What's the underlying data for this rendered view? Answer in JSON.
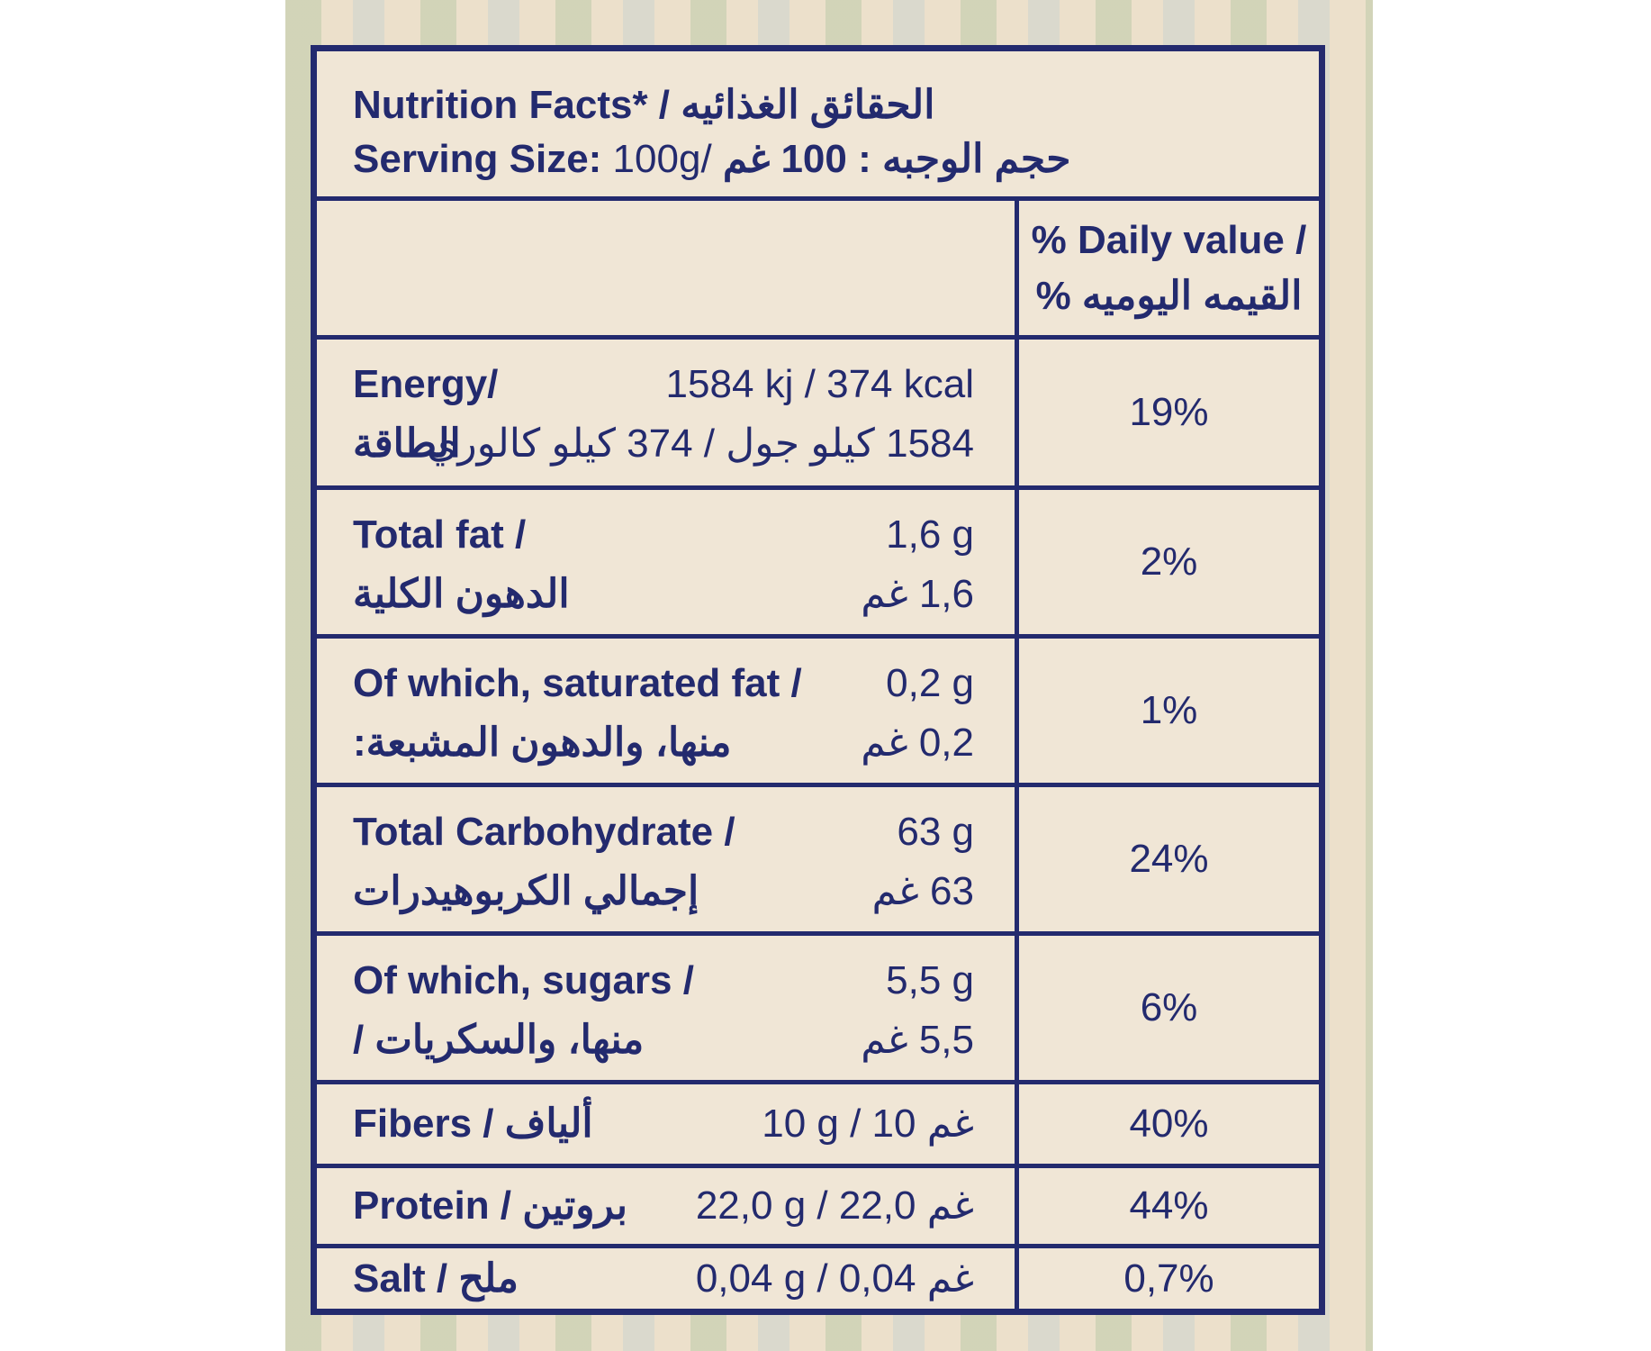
{
  "header": {
    "title_en": "Nutrition Facts*",
    "title_ar": "الحقائق الغذائيه",
    "title_sep": " /",
    "serving_label_en": "Serving Size:",
    "serving_value_en": "100g",
    "serving_sep": "/",
    "serving_ar": "حجم الوجبه : 100 غم"
  },
  "daily_value_header": {
    "line1": "% Daily value /",
    "line2": "القيمه اليوميه %"
  },
  "rows": [
    {
      "label_en": "Energy/",
      "value_en": "1584 kj / 374 kcal",
      "label_ar": "الطاقة",
      "value_ar": "1584 كيلو جول / 374 كيلو كالوري",
      "dv": "19%"
    },
    {
      "label_en": "Total fat /",
      "value_en": "1,6 g",
      "label_ar": "الدهون الكلية",
      "value_ar": "1,6 غم",
      "dv": "2%"
    },
    {
      "label_en": "Of which, saturated fat /",
      "value_en": "0,2 g",
      "label_ar": "منها، والدهون المشبعة:",
      "value_ar": "0,2 غم",
      "dv": "1%"
    },
    {
      "label_en": "Total Carbohydrate /",
      "value_en": "63 g",
      "label_ar": "إجمالي الكربوهيدرات",
      "value_ar": "63 غم",
      "dv": "24%"
    },
    {
      "label_en": "Of which, sugars /",
      "value_en": "5,5 g",
      "label_ar": "منها، والسكريات /",
      "value_ar": "5,5 غم",
      "dv": "6%"
    },
    {
      "label": "Fibers / ألياف",
      "value": "10 g / 10 غم",
      "dv": "40%"
    },
    {
      "label": "Protein / بروتين",
      "value": "22,0 g / 22,0 غم",
      "dv": "44%"
    },
    {
      "label": "Salt / ملح",
      "value": "0,04 g /  0,04 غم",
      "dv": "0,7%"
    }
  ]
}
